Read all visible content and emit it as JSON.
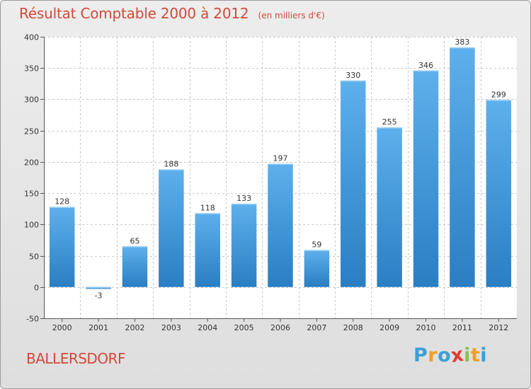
{
  "header": {
    "title": "Résultat Comptable 2000 à 2012",
    "subtitle": "(en milliers d'€)"
  },
  "location": "BALLERSDORF",
  "logo": {
    "letters": [
      "P",
      "r",
      "o",
      "x",
      "i",
      "t",
      "i"
    ],
    "colors": [
      "#3aa0d8",
      "#f0a020",
      "#3aa0d8",
      "#e23b2e",
      "#8bc34a",
      "#f0a020",
      "#3aa0d8"
    ]
  },
  "colors": {
    "bar_light": "#5eb0ec",
    "bar_dark": "#2a7ec2",
    "title": "#d04a3a"
  },
  "chart_data": {
    "type": "bar",
    "title": "Résultat Comptable 2000 à 2012",
    "subtitle": "(en milliers d'€)",
    "categories": [
      "2000",
      "2001",
      "2002",
      "2003",
      "2004",
      "2005",
      "2006",
      "2007",
      "2008",
      "2009",
      "2010",
      "2011",
      "2012"
    ],
    "values": [
      128,
      -3,
      65,
      188,
      118,
      133,
      197,
      59,
      330,
      255,
      346,
      383,
      299
    ],
    "data_labels": [
      "128",
      "-3",
      "65",
      "188",
      "118",
      "133",
      "197",
      "59",
      "330",
      "255",
      "346",
      "383",
      "299"
    ],
    "ylim": [
      -50,
      400
    ],
    "yticks": [
      -50,
      0,
      50,
      100,
      150,
      200,
      250,
      300,
      350,
      400
    ],
    "ytick_labels": [
      "-50",
      "0",
      "50",
      "100",
      "150",
      "200",
      "250",
      "300",
      "350",
      "400"
    ],
    "grid": true,
    "xlabel": "",
    "ylabel": ""
  }
}
